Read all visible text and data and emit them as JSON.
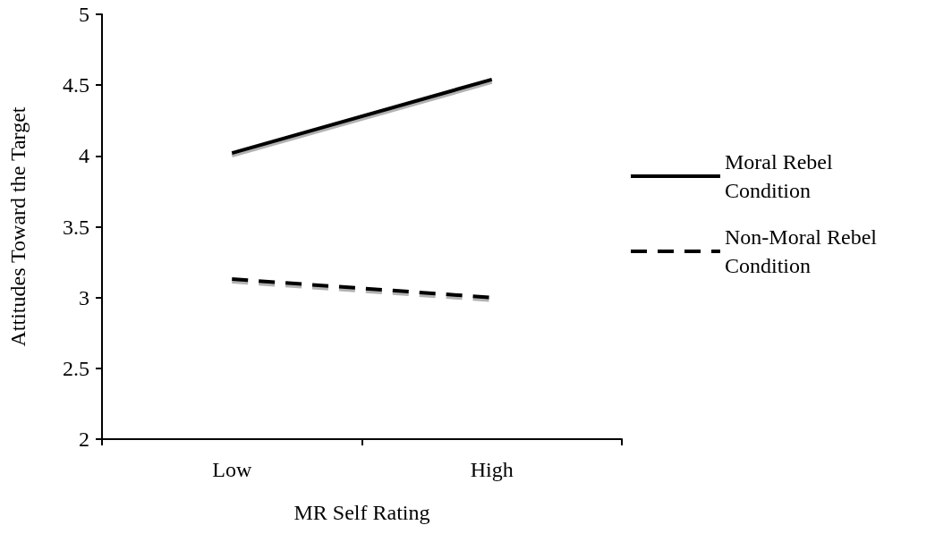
{
  "chart_data": {
    "type": "line",
    "xlabel": "MR Self Rating",
    "ylabel": "Attitudes Toward the Target",
    "categories": [
      "Low",
      "High"
    ],
    "series": [
      {
        "name": "Moral Rebel Condition",
        "color": "#000000",
        "line_style": "solid",
        "values": [
          4.02,
          4.54
        ]
      },
      {
        "name": "Non-Moral Rebel Condition",
        "color": "#000000",
        "line_style": "dashed",
        "values": [
          3.13,
          3.0
        ]
      }
    ],
    "ylim": [
      2,
      5
    ],
    "yticks": [
      2,
      2.5,
      3,
      3.5,
      4,
      4.5,
      5
    ],
    "grid": false,
    "legend": "right",
    "marker": "none"
  }
}
